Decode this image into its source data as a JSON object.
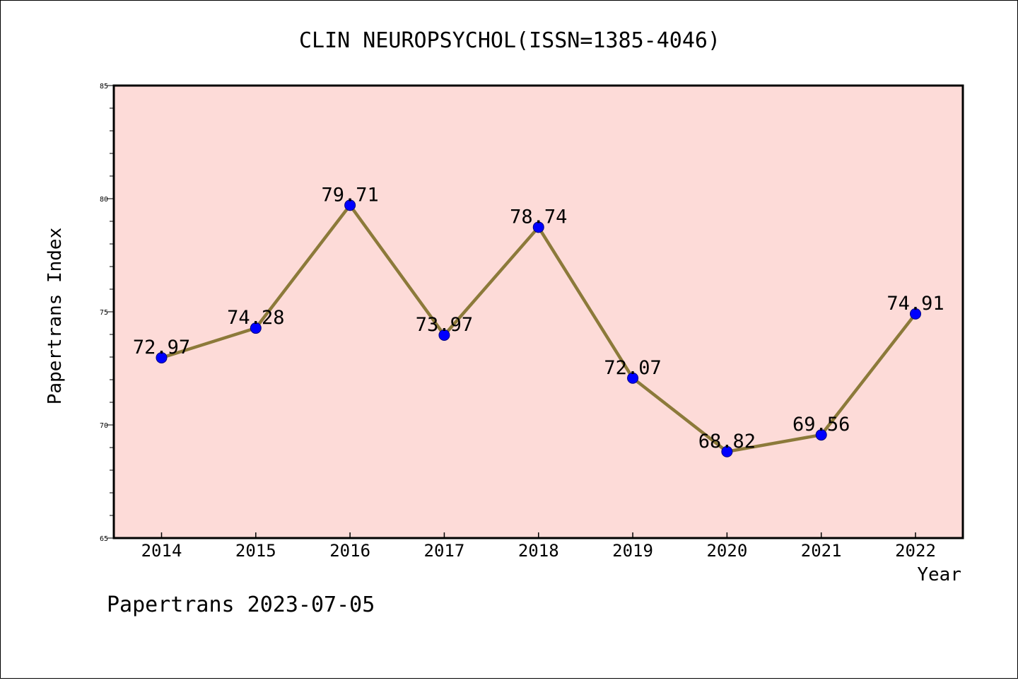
{
  "chart_data": {
    "type": "line",
    "title": "CLIN NEUROPSYCHOL(ISSN=1385-4046)",
    "xlabel": "Year",
    "ylabel": "Papertrans Index",
    "categories": [
      "2014",
      "2015",
      "2016",
      "2017",
      "2018",
      "2019",
      "2020",
      "2021",
      "2022"
    ],
    "series": [
      {
        "values": [
          72.97,
          74.28,
          79.71,
          73.97,
          78.74,
          72.07,
          68.82,
          69.56,
          74.91
        ],
        "labels": [
          "72.97",
          "74.28",
          "79.71",
          "73.97",
          "78.74",
          "72.07",
          "68.82",
          "69.56",
          "74.91"
        ]
      }
    ],
    "ylim": [
      65,
      85
    ],
    "yticks": [
      "65",
      "70",
      "75",
      "80",
      "85"
    ],
    "grid": false,
    "legend": "none"
  },
  "footer": "Papertrans 2023-07-05",
  "colors": {
    "plot_background": "#fddbd8",
    "line": "#8c7a3a",
    "marker": "#0000ff",
    "axis": "#000000"
  }
}
